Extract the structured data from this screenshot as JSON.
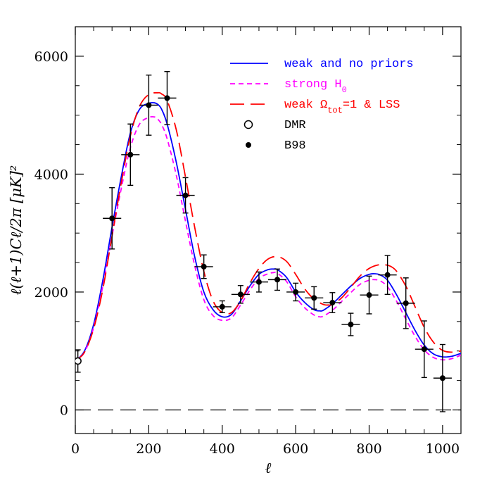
{
  "chart_data": {
    "type": "line",
    "xlabel": "ℓ",
    "ylabel": "ℓ(ℓ+1)Cℓ/2π  [μK]²",
    "xlim": [
      0,
      1050
    ],
    "ylim": [
      -400,
      6500
    ],
    "x_major_ticks": [
      0,
      200,
      400,
      600,
      800,
      1000
    ],
    "x_tick_labels": [
      "0",
      "200",
      "400",
      "600",
      "800",
      "1000"
    ],
    "y_major_ticks": [
      0,
      2000,
      4000,
      6000
    ],
    "y_tick_labels": [
      "0",
      "2000",
      "4000",
      "6000"
    ],
    "zero_reference": {
      "y": 0,
      "style": "dashed"
    },
    "legend_position": "top-right",
    "series": [
      {
        "name": "weak and no priors",
        "color": "#0000ff",
        "dash": "solid",
        "x": [
          0,
          25,
          50,
          75,
          100,
          125,
          150,
          175,
          200,
          215,
          225,
          235,
          250,
          275,
          300,
          325,
          350,
          375,
          400,
          425,
          450,
          475,
          500,
          525,
          540,
          550,
          575,
          600,
          625,
          650,
          665,
          675,
          700,
          725,
          750,
          775,
          800,
          815,
          830,
          850,
          875,
          900,
          925,
          950,
          975,
          1000,
          1025,
          1050
        ],
        "y": [
          830,
          1000,
          1450,
          2200,
          3100,
          3950,
          4700,
          5100,
          5200,
          5210,
          5180,
          5100,
          4850,
          4200,
          3400,
          2600,
          2000,
          1700,
          1580,
          1620,
          1850,
          2100,
          2300,
          2380,
          2390,
          2380,
          2250,
          2000,
          1820,
          1700,
          1680,
          1690,
          1800,
          1950,
          2100,
          2230,
          2300,
          2310,
          2290,
          2200,
          1950,
          1650,
          1350,
          1100,
          950,
          900,
          910,
          960
        ]
      },
      {
        "name": "strong H₀",
        "color": "#ff00ff",
        "dash": "short",
        "x": [
          0,
          25,
          50,
          75,
          100,
          125,
          150,
          175,
          200,
          215,
          225,
          235,
          250,
          275,
          300,
          325,
          350,
          375,
          400,
          425,
          450,
          475,
          500,
          525,
          540,
          550,
          575,
          600,
          625,
          650,
          665,
          675,
          700,
          725,
          750,
          775,
          800,
          815,
          830,
          850,
          875,
          900,
          925,
          950,
          975,
          1000,
          1025,
          1050
        ],
        "y": [
          820,
          980,
          1400,
          2100,
          2950,
          3750,
          4450,
          4850,
          4960,
          4970,
          4930,
          4840,
          4600,
          3980,
          3200,
          2450,
          1870,
          1600,
          1520,
          1560,
          1780,
          2030,
          2230,
          2310,
          2330,
          2320,
          2180,
          1920,
          1730,
          1610,
          1580,
          1590,
          1690,
          1840,
          1990,
          2130,
          2200,
          2210,
          2190,
          2090,
          1840,
          1540,
          1250,
          1020,
          890,
          850,
          870,
          930
        ]
      },
      {
        "name": "weak Ωtot=1 & LSS",
        "color": "#ff0000",
        "dash": "long",
        "x": [
          0,
          25,
          50,
          75,
          100,
          125,
          150,
          175,
          200,
          225,
          235,
          250,
          275,
          300,
          325,
          350,
          375,
          400,
          425,
          450,
          475,
          500,
          525,
          550,
          575,
          600,
          625,
          650,
          675,
          690,
          700,
          725,
          750,
          775,
          800,
          825,
          845,
          860,
          875,
          900,
          925,
          950,
          975,
          1000,
          1025,
          1050
        ],
        "y": [
          830,
          980,
          1380,
          2050,
          2950,
          3850,
          4650,
          5150,
          5350,
          5380,
          5360,
          5250,
          4750,
          3950,
          3100,
          2350,
          1850,
          1650,
          1650,
          1850,
          2150,
          2400,
          2560,
          2600,
          2520,
          2300,
          2050,
          1880,
          1790,
          1780,
          1790,
          1900,
          2080,
          2270,
          2400,
          2460,
          2460,
          2430,
          2350,
          2100,
          1750,
          1400,
          1150,
          1010,
          980,
          1000
        ]
      }
    ],
    "points": [
      {
        "name": "DMR",
        "marker": "open-circle",
        "x": [
          7
        ],
        "y": [
          830
        ],
        "yerr": [
          190
        ],
        "xerr": [
          6
        ]
      },
      {
        "name": "B98",
        "marker": "filled-circle",
        "x": [
          100,
          150,
          200,
          250,
          300,
          350,
          400,
          450,
          500,
          550,
          600,
          650,
          700,
          750,
          800,
          850,
          900,
          950,
          1000
        ],
        "y": [
          3250,
          4330,
          5170,
          5290,
          3640,
          2430,
          1750,
          1960,
          2170,
          2210,
          2000,
          1900,
          1820,
          1450,
          1950,
          2290,
          1810,
          1030,
          540
        ],
        "yerr": [
          520,
          520,
          510,
          450,
          300,
          200,
          100,
          150,
          170,
          180,
          150,
          190,
          170,
          190,
          320,
          330,
          430,
          480,
          570
        ],
        "xerr": [
          25,
          25,
          25,
          25,
          25,
          25,
          25,
          25,
          25,
          25,
          25,
          25,
          25,
          25,
          25,
          25,
          25,
          25,
          25
        ]
      }
    ],
    "legend": [
      {
        "label": "weak and no priors",
        "color": "#0000ff",
        "style": "line-solid"
      },
      {
        "label": "strong H",
        "sub": "0",
        "label_after": "",
        "color": "#ff00ff",
        "style": "line-short-dash"
      },
      {
        "label": "weak Ω",
        "sub": "tot",
        "label_after": "=1 & LSS",
        "color": "#ff0000",
        "style": "line-long-dash"
      },
      {
        "label": "DMR",
        "color": "#000000",
        "style": "open-circle"
      },
      {
        "label": "B98",
        "color": "#000000",
        "style": "filled-circle"
      }
    ]
  }
}
